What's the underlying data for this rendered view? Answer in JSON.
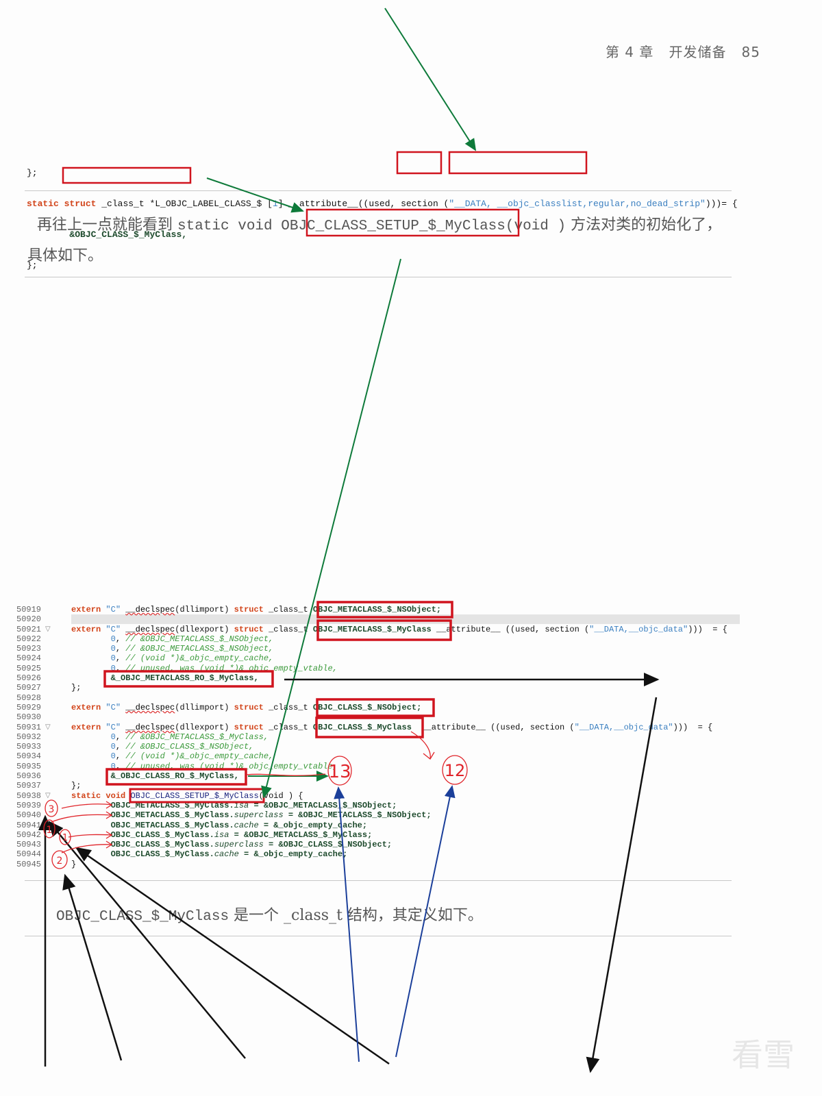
{
  "header": {
    "chapter": "第 4 章",
    "chapter_title": "开发储备",
    "page_number": "85"
  },
  "top_code": {
    "line1": "};",
    "line2": [
      [
        "k",
        "static"
      ],
      [
        "p",
        " "
      ],
      [
        "k",
        "struct"
      ],
      [
        "p",
        " _class_t *L_OBJC_LABEL_CLASS_$ ["
      ],
      [
        "n",
        "1"
      ],
      [
        "p",
        "] __attribute__((used, section ("
      ],
      [
        "s",
        "\"__DATA, __objc_classlist,"
      ],
      [
        "s",
        "regular,no_dead_strip\""
      ],
      [
        "p",
        ")))= {"
      ]
    ],
    "line3": "&OBJC_CLASS_$_MyClass,",
    "line4": "};"
  },
  "paragraph1": {
    "before": "再往上一点就能看到 ",
    "code1": "static void ",
    "code2": "OBJC_CLASS_SETUP_$_MyClass",
    "code3": "(void )",
    "after": " 方法对类的初始化了，",
    "line2": "具体如下。"
  },
  "code_lines": [
    {
      "n": "50919",
      "fold": false,
      "indent": 0,
      "t": [
        [
          "k",
          "extern"
        ],
        [
          "p",
          " "
        ],
        [
          "s",
          "\"C\""
        ],
        [
          "p",
          " "
        ],
        [
          "u",
          "__declspec"
        ],
        [
          "p",
          "(dllimport) "
        ],
        [
          "k",
          "struct"
        ],
        [
          "p",
          " _class_t "
        ],
        [
          "i",
          "OBJC_METACLASS_$_NSObject;"
        ]
      ]
    },
    {
      "n": "50920",
      "fold": false,
      "indent": 0,
      "t": []
    },
    {
      "n": "50921",
      "fold": true,
      "indent": 0,
      "t": [
        [
          "k",
          "extern"
        ],
        [
          "p",
          " "
        ],
        [
          "s",
          "\"C\""
        ],
        [
          "p",
          " "
        ],
        [
          "u",
          "__declspec"
        ],
        [
          "p",
          "(dllexport) "
        ],
        [
          "k",
          "struct"
        ],
        [
          "p",
          " _class_t "
        ],
        [
          "i",
          "OBJC_METACLASS_$_MyClass"
        ],
        [
          "p",
          " __attribute__ ((used, section ("
        ],
        [
          "s",
          "\"__DATA,__objc_data\""
        ],
        [
          "p",
          ")))  = {"
        ]
      ]
    },
    {
      "n": "50922",
      "fold": false,
      "indent": 8,
      "t": [
        [
          "n",
          "0"
        ],
        [
          "p",
          ", "
        ],
        [
          "c",
          "// &OBJC_METACLASS_$_NSObject,"
        ]
      ]
    },
    {
      "n": "50923",
      "fold": false,
      "indent": 8,
      "t": [
        [
          "n",
          "0"
        ],
        [
          "p",
          ", "
        ],
        [
          "c",
          "// &OBJC_METACLASS_$_NSObject,"
        ]
      ]
    },
    {
      "n": "50924",
      "fold": false,
      "indent": 8,
      "t": [
        [
          "n",
          "0"
        ],
        [
          "p",
          ", "
        ],
        [
          "c",
          "// (void *)&_objc_empty_cache,"
        ]
      ]
    },
    {
      "n": "50925",
      "fold": false,
      "indent": 8,
      "t": [
        [
          "n",
          "0"
        ],
        [
          "p",
          ", "
        ],
        [
          "c",
          "// unused, was (void *)&_objc_empty_vtable,"
        ]
      ]
    },
    {
      "n": "50926",
      "fold": false,
      "indent": 8,
      "t": [
        [
          "i",
          "&_OBJC_METACLASS_RO_$_MyClass,"
        ]
      ]
    },
    {
      "n": "50927",
      "fold": false,
      "indent": 0,
      "t": [
        [
          "p",
          "};"
        ]
      ]
    },
    {
      "n": "50928",
      "fold": false,
      "indent": 0,
      "t": []
    },
    {
      "n": "50929",
      "fold": false,
      "indent": 0,
      "t": [
        [
          "k",
          "extern"
        ],
        [
          "p",
          " "
        ],
        [
          "s",
          "\"C\""
        ],
        [
          "p",
          " "
        ],
        [
          "u",
          "__declspec"
        ],
        [
          "p",
          "(dllimport) "
        ],
        [
          "k",
          "struct"
        ],
        [
          "p",
          " _class_t "
        ],
        [
          "i",
          "OBJC_CLASS_$_NSObject;"
        ]
      ]
    },
    {
      "n": "50930",
      "fold": false,
      "indent": 0,
      "t": []
    },
    {
      "n": "50931",
      "fold": true,
      "indent": 0,
      "t": [
        [
          "k",
          "extern"
        ],
        [
          "p",
          " "
        ],
        [
          "s",
          "\"C\""
        ],
        [
          "p",
          " "
        ],
        [
          "u",
          "__declspec"
        ],
        [
          "p",
          "(dllexport) "
        ],
        [
          "k",
          "struct"
        ],
        [
          "p",
          " _class_t "
        ],
        [
          "i",
          "OBJC_CLASS_$_MyClass"
        ],
        [
          "p",
          "  __attribute__ ((used, section ("
        ],
        [
          "s",
          "\"__DATA,__objc_data\""
        ],
        [
          "p",
          ")))  = {"
        ]
      ]
    },
    {
      "n": "50932",
      "fold": false,
      "indent": 8,
      "t": [
        [
          "n",
          "0"
        ],
        [
          "p",
          ", "
        ],
        [
          "c",
          "// &OBJC_METACLASS_$_MyClass,"
        ]
      ]
    },
    {
      "n": "50933",
      "fold": false,
      "indent": 8,
      "t": [
        [
          "n",
          "0"
        ],
        [
          "p",
          ", "
        ],
        [
          "c",
          "// &OBJC_CLASS_$_NSObject,"
        ]
      ]
    },
    {
      "n": "50934",
      "fold": false,
      "indent": 8,
      "t": [
        [
          "n",
          "0"
        ],
        [
          "p",
          ", "
        ],
        [
          "c",
          "// (void *)&_objc_empty_cache,"
        ]
      ]
    },
    {
      "n": "50935",
      "fold": false,
      "indent": 8,
      "t": [
        [
          "n",
          "0"
        ],
        [
          "p",
          ", "
        ],
        [
          "c",
          "// unused, was (void *)&_objc_empty_vtable,"
        ]
      ]
    },
    {
      "n": "50936",
      "fold": false,
      "indent": 8,
      "t": [
        [
          "i",
          "&_OBJC_CLASS_RO_$_MyClass,"
        ]
      ]
    },
    {
      "n": "50937",
      "fold": false,
      "indent": 0,
      "t": [
        [
          "p",
          "};"
        ]
      ]
    },
    {
      "n": "50938",
      "fold": true,
      "indent": 0,
      "t": [
        [
          "k",
          "static"
        ],
        [
          "p",
          " "
        ],
        [
          "k",
          "void"
        ],
        [
          "p",
          " "
        ],
        [
          "b",
          "OBJC_CLASS_SETUP_$_MyClass"
        ],
        [
          "p",
          "(void ) {"
        ]
      ]
    },
    {
      "n": "50939",
      "fold": false,
      "indent": 8,
      "t": [
        [
          "i",
          "OBJC_METACLASS_$_MyClass."
        ],
        [
          "f",
          "isa"
        ],
        [
          "i",
          " = &OBJC_METACLASS_$_NSObject;"
        ]
      ]
    },
    {
      "n": "50940",
      "fold": false,
      "indent": 8,
      "t": [
        [
          "i",
          "OBJC_METACLASS_$_MyClass."
        ],
        [
          "f",
          "superclass"
        ],
        [
          "i",
          " = &OBJC_METACLASS_$_NSObject;"
        ]
      ]
    },
    {
      "n": "50941",
      "fold": false,
      "indent": 8,
      "t": [
        [
          "i",
          "OBJC_METACLASS_$_MyClass."
        ],
        [
          "f",
          "cache"
        ],
        [
          "i",
          " = &_objc_empty_cache;"
        ]
      ]
    },
    {
      "n": "50942",
      "fold": false,
      "indent": 8,
      "t": [
        [
          "i",
          "OBJC_CLASS_$_MyClass."
        ],
        [
          "f",
          "isa"
        ],
        [
          "i",
          " = &OBJC_METACLASS_$_MyClass;"
        ]
      ]
    },
    {
      "n": "50943",
      "fold": false,
      "indent": 8,
      "t": [
        [
          "i",
          "OBJC_CLASS_$_MyClass."
        ],
        [
          "f",
          "superclass"
        ],
        [
          "i",
          " = &OBJC_CLASS_$_NSObject;"
        ]
      ]
    },
    {
      "n": "50944",
      "fold": false,
      "indent": 8,
      "t": [
        [
          "i",
          "OBJC_CLASS_$_MyClass."
        ],
        [
          "f",
          "cache"
        ],
        [
          "i",
          " = &_objc_empty_cache;"
        ]
      ]
    },
    {
      "n": "50945",
      "fold": false,
      "indent": 0,
      "t": [
        [
          "p",
          "}"
        ]
      ]
    }
  ],
  "paragraph2": {
    "code": "OBJC_CLASS_$_MyClass",
    "text": " 是一个 _class_t 结构，其定义如下。"
  },
  "annotations": {
    "circle_labels": [
      "13",
      "12",
      "3",
      "1",
      "1",
      "2"
    ],
    "colors": {
      "box": "#d0141e",
      "green_arrow": "#0e7a3a",
      "black_arrow": "#111111",
      "blue_arrow": "#1b3f9a",
      "handwriting": "#e0242a"
    }
  },
  "watermark": "看雪"
}
